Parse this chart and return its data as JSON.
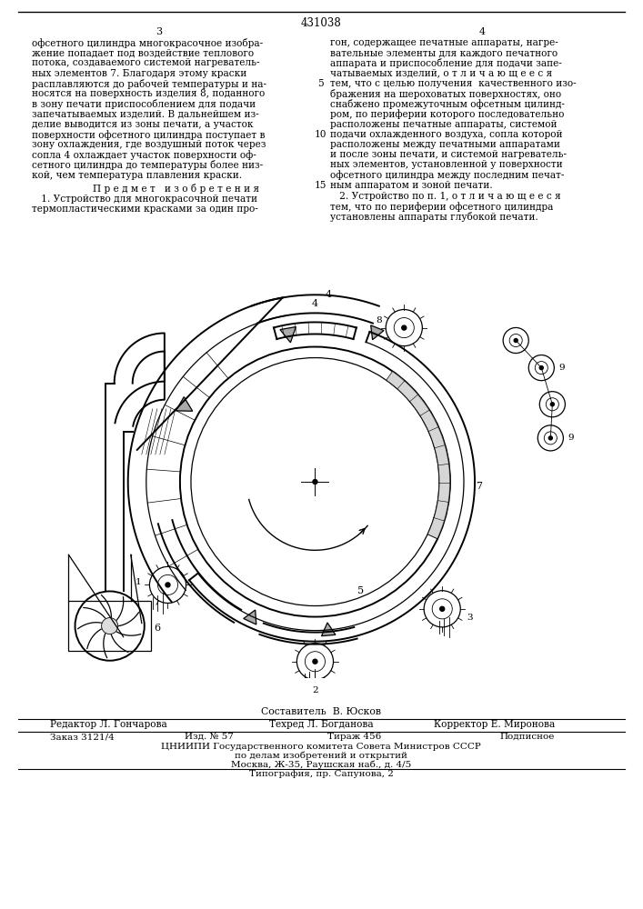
{
  "patent_number": "431038",
  "page_numbers": [
    "3",
    "4"
  ],
  "background_color": "#ffffff",
  "text_color": "#000000",
  "col1_text_lines": [
    "офсетного цилиндра многокрасочное изобра-",
    "жение попадает под воздействие теплового",
    "потока, создаваемого системой нагреватель-",
    "ных элементов 7. Благодаря этому краски",
    "расплавляются до рабочей температуры и на-",
    "носятся на поверхность изделия 8, поданного",
    "в зону печати приспособлением для подачи",
    "запечатываемых изделий. В дальнейшем из-",
    "делие выводится из зоны печати, а участок",
    "поверхности офсетного цилиндра поступает в",
    "зону охлаждения, где воздушный поток через",
    "сопла 4 охлаждает участок поверхности оф-",
    "сетного цилиндра до температуры более низ-",
    "кой, чем температура плавления краски."
  ],
  "col1_heading": "П р е д м е т   и з о б р е т е н и я",
  "col1_claim_lines": [
    "   1. Устройство для многокрасочной печати",
    "термопластическими красками за один про-"
  ],
  "col2_text_lines": [
    "гон, содержащее печатные аппараты, нагре-",
    "вательные элементы для каждого печатного",
    "аппарата и приспособление для подачи запе-",
    "чатываемых изделий, о т л и ч а ю щ е е с я",
    "тем, что с целью получения  качественного изо-",
    "бражения на шероховатых поверхностях, оно",
    "снабжено промежуточным офсетным цилинд-",
    "ром, по периферии которого последовательно",
    "расположены печатные аппараты, системой",
    "подачи охлажденного воздуха, сопла которой",
    "расположены между печатными аппаратами",
    "и после зоны печати, и системой нагреватель-",
    "ных элементов, установленной у поверхности",
    "офсетного цилиндра между последним печат-",
    "ным аппаратом и зоной печати."
  ],
  "col2_line_numbers": [
    5,
    10,
    15
  ],
  "col2_claim2_lines": [
    "   2. Устройство по п. 1, о т л и ч а ю щ е е с я",
    "тем, что по периферии офсетного цилиндра",
    "установлены аппараты глубокой печати."
  ],
  "footer_composer": "Составитель  В. Юсков",
  "footer_editor": "Редактор Л. Гончарова",
  "footer_techred": "Техред Л. Богданова",
  "footer_corrector": "Корректор Е. Миронова",
  "footer_order": "Заказ 3121/4",
  "footer_pub": "Изд. № 57",
  "footer_edition": "Тираж 456",
  "footer_subscription": "Подписное",
  "footer_org": "ЦНИИПИ Государственного комитета Совета Министров СССР",
  "footer_org2": "по делам изобретений и открытий",
  "footer_address": "Москва, Ж-35, Раушская наб., д. 4/5",
  "footer_printer": "Типография, пр. Сапунова, 2"
}
